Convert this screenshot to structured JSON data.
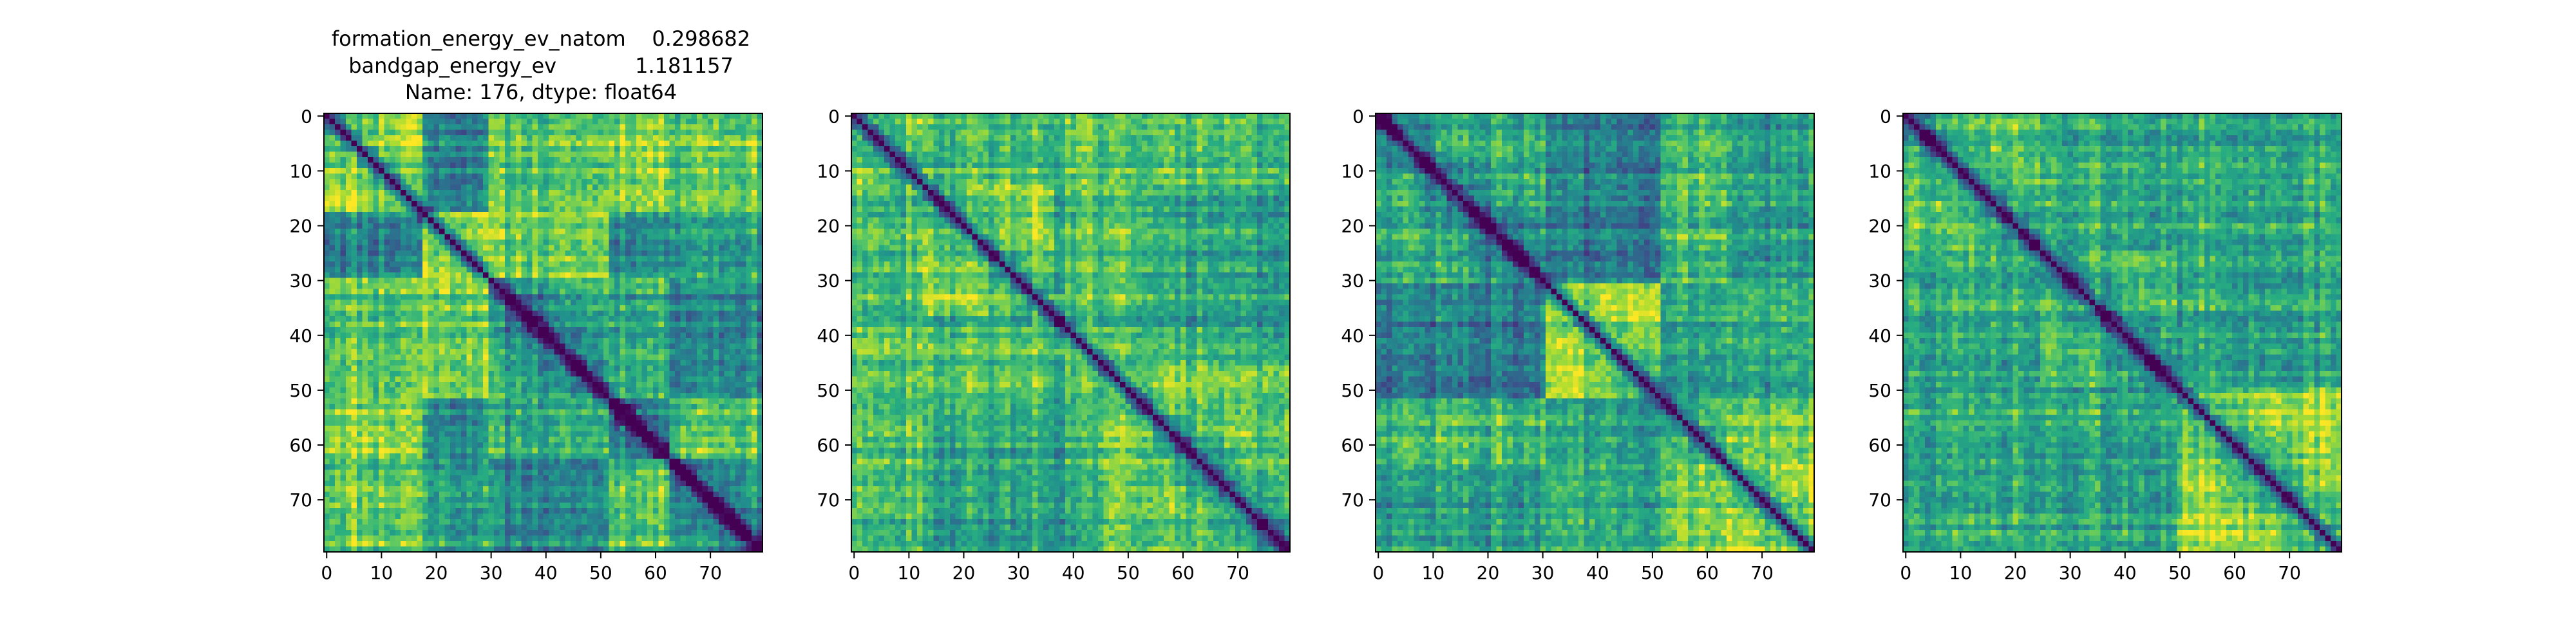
{
  "figure_title": {
    "lines": [
      "formation_energy_ev_natom    0.298682",
      "bandgap_energy_ev            1.181157",
      "Name: 176, dtype: float64"
    ]
  },
  "colormap": {
    "name": "viridis",
    "stops": [
      "#440154",
      "#472c7a",
      "#3b518b",
      "#2c718e",
      "#21908d",
      "#27ad81",
      "#5cc863",
      "#aadc32",
      "#fde725"
    ]
  },
  "chart_data": [
    {
      "type": "heatmap",
      "title": "",
      "size": 80,
      "value_range": [
        0,
        1
      ],
      "block_boundaries": [
        0,
        18,
        30,
        52,
        63,
        80
      ],
      "xticks": [
        0,
        10,
        20,
        30,
        40,
        50,
        60,
        70
      ],
      "yticks": [
        0,
        10,
        20,
        30,
        40,
        50,
        60,
        70
      ],
      "seed": 11,
      "grid": false
    },
    {
      "type": "heatmap",
      "title": "",
      "size": 80,
      "value_range": [
        0,
        1
      ],
      "block_boundaries": [
        0,
        13,
        37,
        45,
        55,
        80
      ],
      "xticks": [
        0,
        10,
        20,
        30,
        40,
        50,
        60,
        70
      ],
      "yticks": [
        0,
        10,
        20,
        30,
        40,
        50,
        60,
        70
      ],
      "seed": 29,
      "grid": false
    },
    {
      "type": "heatmap",
      "title": "",
      "size": 80,
      "value_range": [
        0,
        1
      ],
      "block_boundaries": [
        0,
        31,
        52,
        64,
        80
      ],
      "xticks": [
        0,
        10,
        20,
        30,
        40,
        50,
        60,
        70
      ],
      "yticks": [
        0,
        10,
        20,
        30,
        40,
        50,
        60,
        70
      ],
      "seed": 47,
      "grid": false
    },
    {
      "type": "heatmap",
      "title": "",
      "size": 80,
      "value_range": [
        0,
        1
      ],
      "block_boundaries": [
        0,
        25,
        50,
        80
      ],
      "xticks": [
        0,
        10,
        20,
        30,
        40,
        50,
        60,
        70
      ],
      "yticks": [
        0,
        10,
        20,
        30,
        40,
        50,
        60,
        70
      ],
      "seed": 73,
      "grid": false
    }
  ]
}
